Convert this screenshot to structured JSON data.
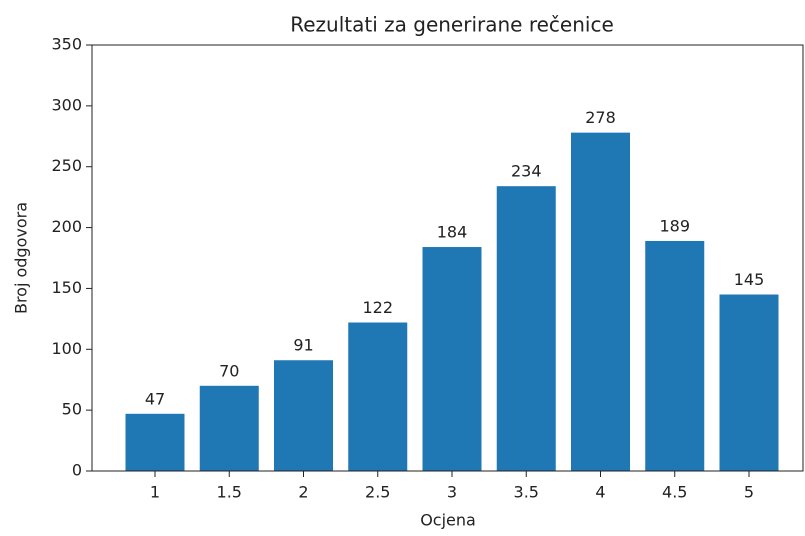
{
  "chart_data": {
    "type": "bar",
    "title": "Rezultati za generirane rečenice",
    "x_label": "Ocjena",
    "y_label": "Broj odgovora",
    "categories": [
      "1",
      "1.5",
      "2",
      "2.5",
      "3",
      "3.5",
      "4",
      "4.5",
      "5"
    ],
    "values": [
      47,
      70,
      91,
      122,
      184,
      234,
      278,
      189,
      145
    ],
    "color": "#1f77b4",
    "ylim": [
      0,
      350
    ],
    "yticks": [
      0,
      50,
      100,
      150,
      200,
      250,
      300,
      350
    ],
    "grid": false
  }
}
